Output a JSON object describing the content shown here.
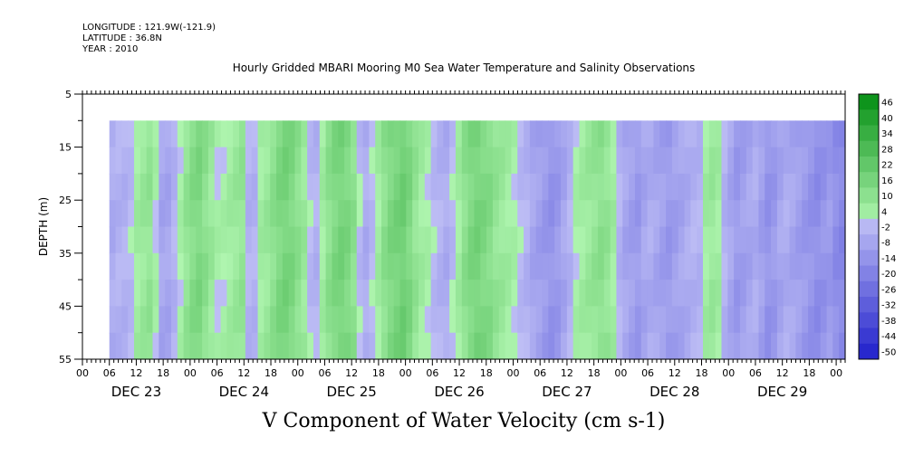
{
  "header": {
    "longitude": "LONGITUDE : 121.9W(-121.9)",
    "latitude": "LATITUDE : 36.8N",
    "year": "YEAR : 2010"
  },
  "chart_data": {
    "type": "heatmap",
    "title": "Hourly Gridded MBARI Mooring M0 Sea Water Temperature and Salinity Observations",
    "bottom_title": "V Component of Water Velocity (cm s-1)",
    "ylabel": "DEPTH (m)",
    "xlabel": "",
    "ylim": [
      5,
      55
    ],
    "y_inverted": true,
    "yticks": [
      5,
      15,
      25,
      35,
      45,
      55
    ],
    "x_range_hours": [
      0,
      170
    ],
    "x_tick_labels": [
      "00",
      "06",
      "12",
      "18",
      "00",
      "06",
      "12",
      "18",
      "00",
      "06",
      "12",
      "18",
      "00",
      "06",
      "12",
      "18",
      "00",
      "06",
      "12",
      "18",
      "00",
      "06",
      "12",
      "18",
      "00",
      "06",
      "12",
      "18",
      "00"
    ],
    "day_labels": [
      "DEC 23",
      "DEC 24",
      "DEC 25",
      "DEC 26",
      "DEC 27",
      "DEC 28",
      "DEC 29"
    ],
    "data_start_hour": 6,
    "depth_range_data": [
      10,
      55
    ],
    "colorbar": {
      "labels": [
        "46",
        "40",
        "34",
        "28",
        "22",
        "16",
        "10",
        "4",
        "-2",
        "-8",
        "-14",
        "-20",
        "-26",
        "-32",
        "-38",
        "-44",
        "-50"
      ],
      "min": -50,
      "max": 50
    },
    "columns_velocity_approx": [
      -6,
      -4,
      -4,
      -2,
      4,
      6,
      8,
      2,
      -8,
      -8,
      -4,
      2,
      8,
      12,
      14,
      10,
      6,
      2,
      2,
      4,
      6,
      8,
      -4,
      -4,
      4,
      6,
      10,
      14,
      16,
      14,
      10,
      6,
      -2,
      -4,
      4,
      10,
      14,
      16,
      14,
      10,
      -2,
      -6,
      -2,
      4,
      10,
      14,
      16,
      18,
      14,
      8,
      4,
      2,
      -2,
      -4,
      -6,
      -2,
      4,
      10,
      14,
      16,
      14,
      12,
      8,
      6,
      4,
      2,
      -2,
      -4,
      -8,
      -10,
      -12,
      -14,
      -12,
      -8,
      -4,
      2,
      4,
      6,
      8,
      10,
      8,
      4,
      -4,
      -8,
      -10,
      -12,
      -8,
      -6,
      -8,
      -10,
      -12,
      -10,
      -8,
      -6,
      -4,
      -4,
      4,
      6,
      4,
      -4,
      -8,
      -12,
      -10,
      -8,
      -6,
      -10,
      -14,
      -12,
      -8,
      -6,
      -8,
      -10,
      -12,
      -14,
      -16,
      -14,
      -12,
      -16,
      -18
    ]
  }
}
